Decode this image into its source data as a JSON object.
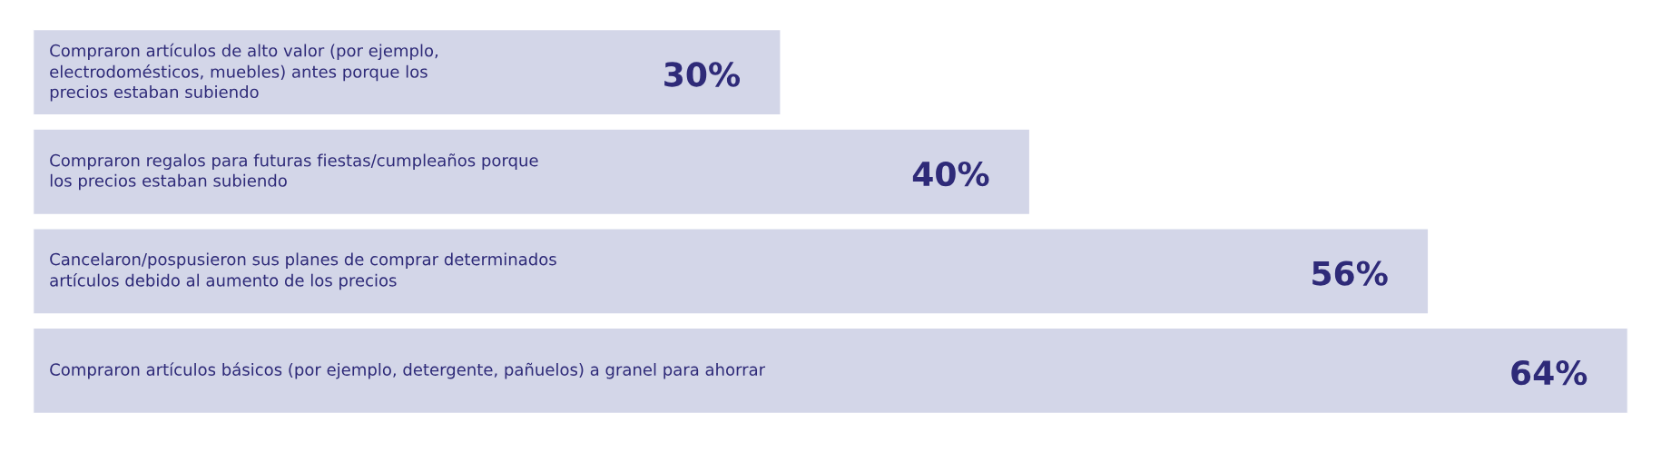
{
  "chart_data": {
    "type": "bar",
    "orientation": "horizontal",
    "categories": [
      "Compraron artículos de alto valor (por ejemplo,\nelectrodomésticos, muebles) antes porque los\nprecios estaban subiendo",
      "Compraron regalos para futuras fiestas/cumpleaños porque\nlos precios estaban subiendo",
      "Cancelaron/pospusieron sus planes de comprar determinados\nartículos debido al aumento de los precios",
      "Compraron artículos básicos (por ejemplo, detergente, pañuelos) a granel para ahorrar"
    ],
    "values": [
      30,
      40,
      56,
      64
    ],
    "value_labels": [
      "30%",
      "40%",
      "56%",
      "64%"
    ],
    "color": "#d3d6e8"
  }
}
